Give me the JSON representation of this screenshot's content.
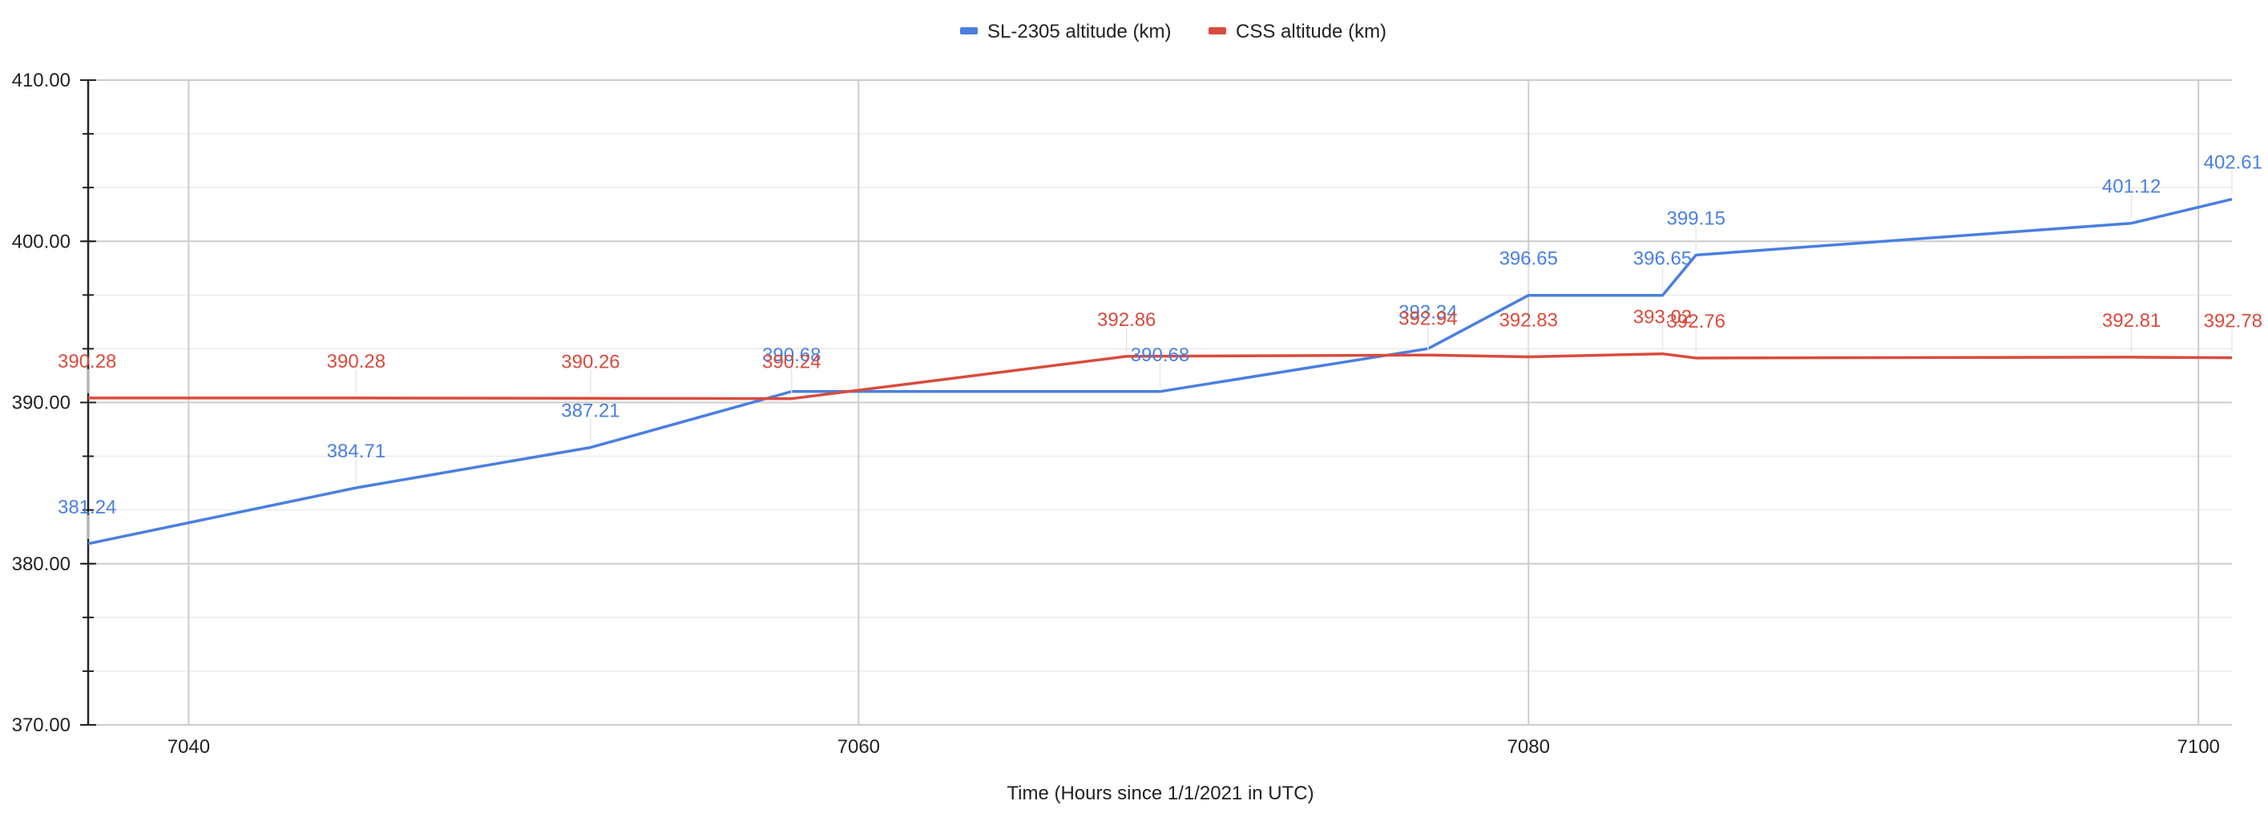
{
  "chart_data": {
    "type": "line",
    "title": "",
    "xlabel": "Time (Hours since 1/1/2021 in UTC)",
    "ylabel": "",
    "xlim": [
      7037,
      7101
    ],
    "ylim": [
      370,
      410
    ],
    "x_ticks": [
      7040,
      7060,
      7080,
      7100
    ],
    "x_tick_labels": [
      "7040",
      "7060",
      "7080",
      "7100"
    ],
    "y_ticks": [
      370,
      380,
      390,
      400,
      410
    ],
    "y_tick_labels": [
      "370.00",
      "380.00",
      "390.00",
      "400.00",
      "410.00"
    ],
    "grid": true,
    "legend_position": "top",
    "series": [
      {
        "name": "SL-2305 altitude (km)",
        "color": "#4a7fe0",
        "points": [
          {
            "x": 7037,
            "y": 381.24,
            "label": "381.24"
          },
          {
            "x": 7045,
            "y": 384.71,
            "label": "384.71"
          },
          {
            "x": 7052,
            "y": 387.21,
            "label": "387.21"
          },
          {
            "x": 7058,
            "y": 390.68,
            "label": "390.68"
          },
          {
            "x": 7069,
            "y": 390.68,
            "label": "390.68"
          },
          {
            "x": 7077,
            "y": 393.34,
            "label": "393.34"
          },
          {
            "x": 7080,
            "y": 396.65,
            "label": "396.65"
          },
          {
            "x": 7084,
            "y": 396.65,
            "label": "396.65"
          },
          {
            "x": 7085,
            "y": 399.15,
            "label": "399.15"
          },
          {
            "x": 7098,
            "y": 401.12,
            "label": "401.12"
          },
          {
            "x": 7101,
            "y": 402.61,
            "label": "402.61"
          }
        ]
      },
      {
        "name": "CSS altitude (km)",
        "color": "#d94b3d",
        "points": [
          {
            "x": 7037,
            "y": 390.28,
            "label": "390.28"
          },
          {
            "x": 7045,
            "y": 390.28,
            "label": "390.28"
          },
          {
            "x": 7052,
            "y": 390.26,
            "label": "390.26"
          },
          {
            "x": 7058,
            "y": 390.24,
            "label": "390.24"
          },
          {
            "x": 7068,
            "y": 392.86,
            "label": "392.86"
          },
          {
            "x": 7077,
            "y": 392.94,
            "label": "392.94"
          },
          {
            "x": 7080,
            "y": 392.83,
            "label": "392.83"
          },
          {
            "x": 7084,
            "y": 393.02,
            "label": "393.02"
          },
          {
            "x": 7085,
            "y": 392.76,
            "label": "392.76"
          },
          {
            "x": 7098,
            "y": 392.81,
            "label": "392.81"
          },
          {
            "x": 7101,
            "y": 392.78,
            "label": "392.78"
          }
        ]
      }
    ]
  }
}
